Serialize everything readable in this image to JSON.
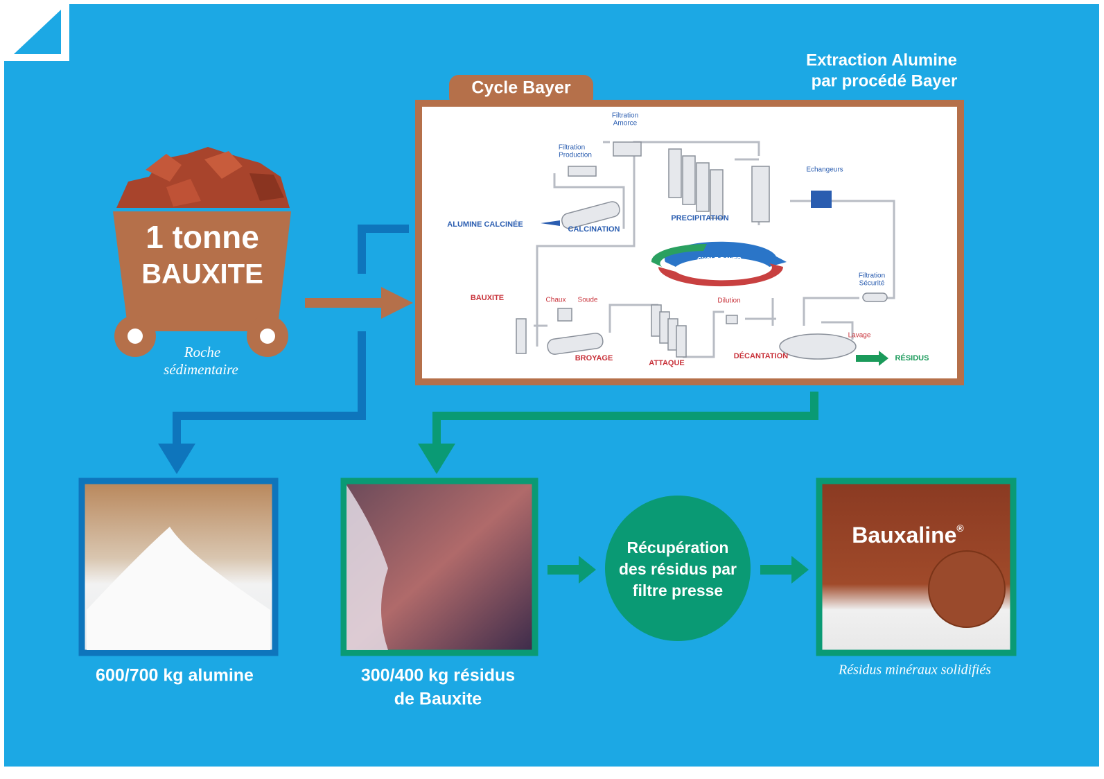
{
  "header": {
    "title_lines": [
      "Extraction Alumine",
      "par procédé Bayer"
    ]
  },
  "cycle": {
    "tab": "Cycle Bayer",
    "labels": {
      "filtration_amorce": [
        "Filtration",
        "Amorce"
      ],
      "filtration_production": [
        "Filtration",
        "Production"
      ],
      "echangeurs": "Echangeurs",
      "alumine_calcinee": "ALUMINE CALCINÉE",
      "calcination": "CALCINATION",
      "precipitation": "PRECIPITATION",
      "cycle_bayer": "CYCLE BAYER",
      "filtration_securite": [
        "Filtration",
        "Sécurité"
      ],
      "bauxite": "BAUXITE",
      "chaux": "Chaux",
      "soude": "Soude",
      "dilution": "Dilution",
      "lavage": "Lavage",
      "broyage": "BROYAGE",
      "attaque": "ATTAQUE",
      "decantation": "DÉCANTATION",
      "residus": "RÉSIDUS"
    }
  },
  "input": {
    "lines": [
      "1 tonne",
      "BAUXITE"
    ],
    "caption": [
      "Roche",
      "sédimentaire"
    ]
  },
  "outputs": {
    "alumine": {
      "caption": "600/700 kg alumine"
    },
    "residus": {
      "caption": [
        "300/400 kg résidus",
        "de Bauxite"
      ]
    },
    "recuperation": {
      "lines": [
        "Récupération",
        "des résidus par",
        "filtre presse"
      ]
    },
    "bauxaline": {
      "name": "Bauxaline",
      "mark": "®",
      "caption": "Résidus minéraux solidifiés"
    }
  }
}
